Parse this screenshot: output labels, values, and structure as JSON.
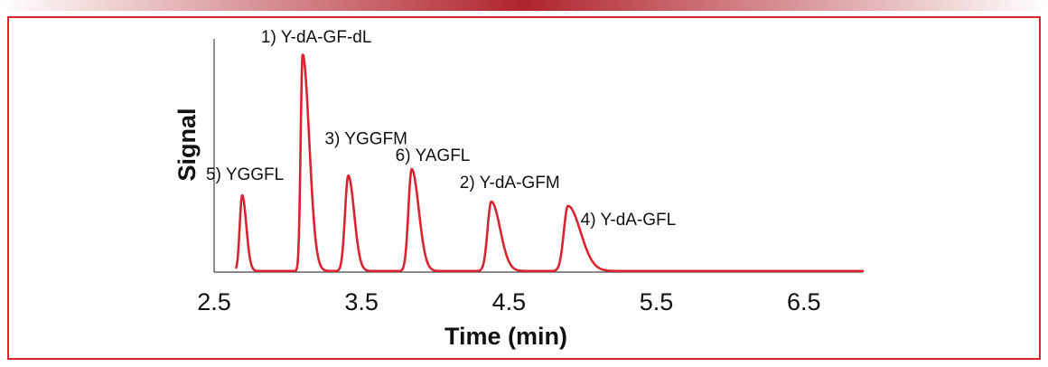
{
  "colors": {
    "border": "#d9252f",
    "trace": "#d9252f",
    "top_bar_center": "#b0242c",
    "top_bar_edge": "#ffffff",
    "axis": "#444444",
    "text": "#111111"
  },
  "chart_data": {
    "type": "line",
    "title": "",
    "xlabel": "Time (min)",
    "ylabel": "Signal",
    "xlim": [
      2.5,
      6.9
    ],
    "ylim": [
      0,
      100
    ],
    "grid": false,
    "x_ticks": [
      2.5,
      3.5,
      4.5,
      5.5,
      6.5
    ],
    "x_tick_labels": [
      "2.5",
      "3.5",
      "4.5",
      "5.5",
      "6.5"
    ],
    "baseline": 0.5,
    "end_x": 6.9,
    "start_x": 2.65,
    "peaks": [
      {
        "label": "5) YGGFL",
        "rt": 2.69,
        "height": 35,
        "sigma_left": 0.016,
        "sigma_right": 0.028
      },
      {
        "label": "1) Y-dA-GF-dL",
        "rt": 3.1,
        "height": 100,
        "sigma_left": 0.013,
        "sigma_right": 0.045
      },
      {
        "label": "3) YGGFM",
        "rt": 3.41,
        "height": 44,
        "sigma_left": 0.022,
        "sigma_right": 0.04
      },
      {
        "label": "6) YAGFL",
        "rt": 3.84,
        "height": 47,
        "sigma_left": 0.022,
        "sigma_right": 0.048
      },
      {
        "label": "2) Y-dA-GFM",
        "rt": 4.38,
        "height": 32,
        "sigma_left": 0.025,
        "sigma_right": 0.06
      },
      {
        "label": "4) Y-dA-GFL",
        "rt": 4.9,
        "height": 30,
        "sigma_left": 0.028,
        "sigma_right": 0.085
      }
    ]
  }
}
